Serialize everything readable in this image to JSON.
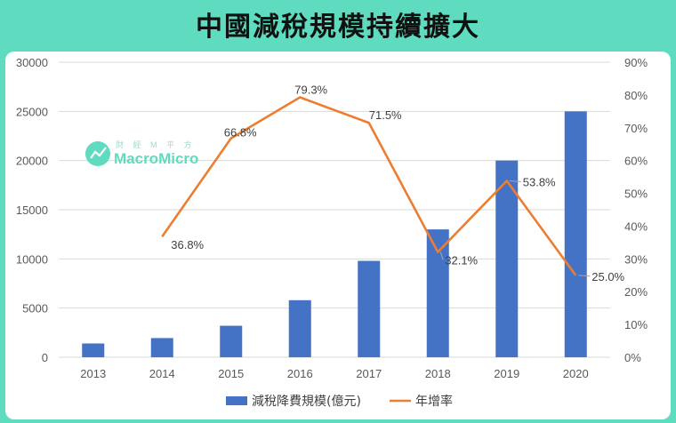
{
  "title": "中國減稅規模持續擴大",
  "logo": {
    "cn": "財 經 M 平 方",
    "en": "MacroMicro"
  },
  "colors": {
    "bar": "#4472c4",
    "line": "#ed7d31",
    "background": "#5fdcbf",
    "grid": "#d9d9d9"
  },
  "chart_data": {
    "type": "bar",
    "categories": [
      "2013",
      "2014",
      "2015",
      "2016",
      "2017",
      "2018",
      "2019",
      "2020"
    ],
    "series": [
      {
        "name": "減稅降費規模(億元)",
        "type": "bar",
        "axis": "left",
        "values": [
          1400,
          1950,
          3200,
          5800,
          9800,
          13000,
          20000,
          25000
        ]
      },
      {
        "name": "年增率",
        "type": "line",
        "axis": "right",
        "values": [
          null,
          36.8,
          66.8,
          79.3,
          71.5,
          32.1,
          53.8,
          25.0
        ],
        "labels": [
          "",
          "36.8%",
          "66.8%",
          "79.3%",
          "71.5%",
          "32.1%",
          "53.8%",
          "25.0%"
        ]
      }
    ],
    "left_axis": {
      "ticks": [
        "0",
        "5000",
        "10000",
        "15000",
        "20000",
        "25000",
        "30000"
      ],
      "ylim": [
        0,
        30000
      ]
    },
    "right_axis": {
      "ticks": [
        "0%",
        "10%",
        "20%",
        "30%",
        "40%",
        "50%",
        "60%",
        "70%",
        "80%",
        "90%"
      ],
      "ylim": [
        0,
        90
      ]
    },
    "grid": true,
    "legend_position": "bottom"
  }
}
